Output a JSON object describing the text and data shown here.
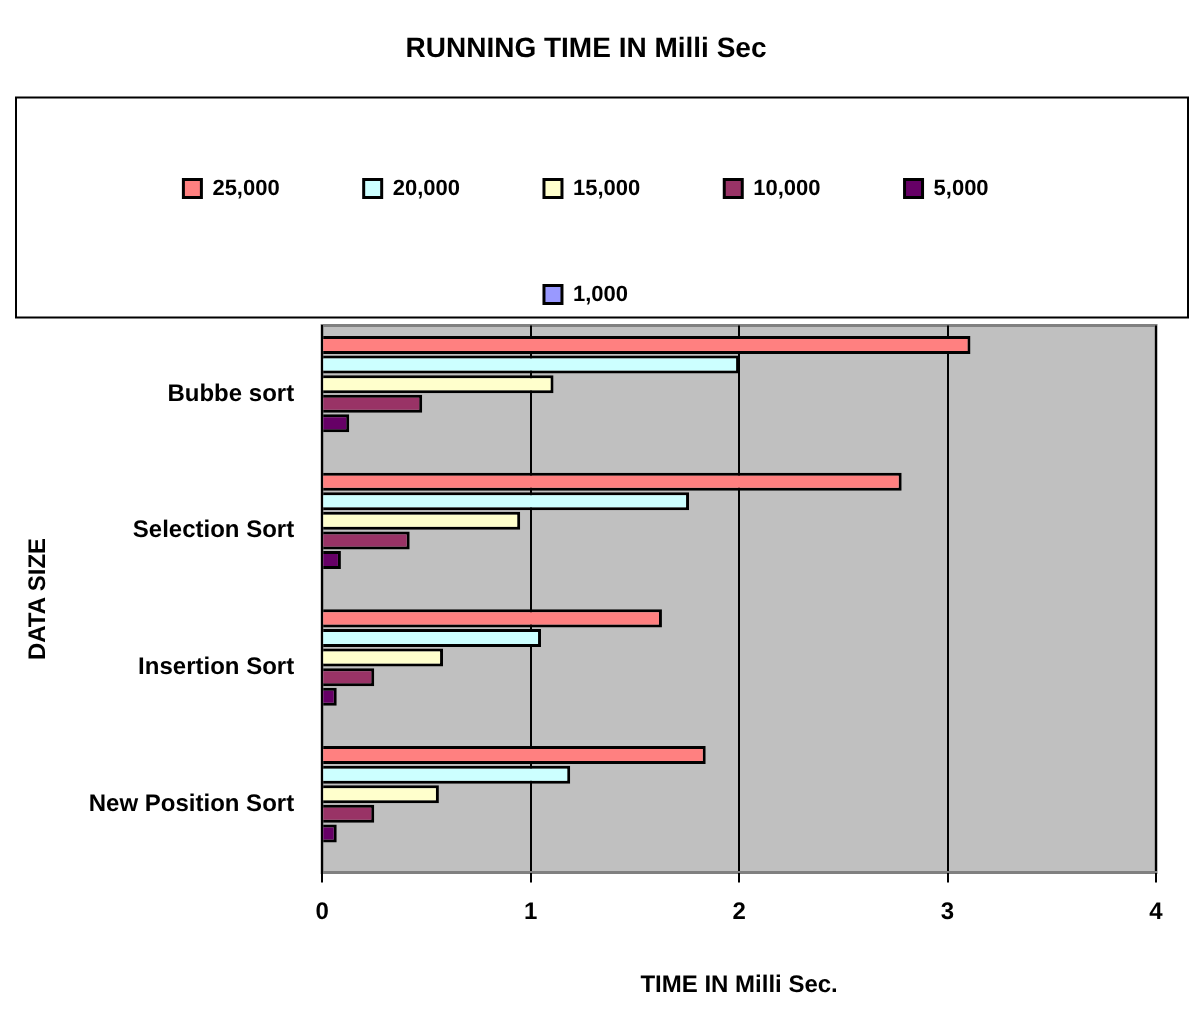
{
  "chart_data": {
    "type": "bar",
    "orientation": "horizontal",
    "title": "RUNNING TIME IN Milli Sec",
    "xlabel": "TIME IN Milli Sec.",
    "ylabel": "DATA SIZE",
    "categories": [
      "Bubbe sort",
      "Selection Sort",
      "Insertion Sort",
      "New Position Sort"
    ],
    "series": [
      {
        "name": "25,000",
        "color": "#ff8080",
        "values": [
          3.11,
          2.78,
          1.63,
          1.84
        ]
      },
      {
        "name": "20,000",
        "color": "#ccffff",
        "values": [
          2.0,
          1.76,
          1.05,
          1.19
        ]
      },
      {
        "name": "15,000",
        "color": "#ffffcc",
        "values": [
          1.11,
          0.95,
          0.58,
          0.56
        ]
      },
      {
        "name": "10,000",
        "color": "#993366",
        "values": [
          0.48,
          0.42,
          0.25,
          0.25
        ]
      },
      {
        "name": "5,000",
        "color": "#660066",
        "values": [
          0.13,
          0.09,
          0.07,
          0.07
        ]
      },
      {
        "name": "1,000",
        "color": "#9999ff",
        "values": [
          0,
          0,
          0,
          0
        ]
      }
    ],
    "xlim": [
      0,
      4
    ],
    "xticks": [
      0,
      1,
      2,
      3,
      4
    ],
    "grid": "x",
    "legend": "top"
  }
}
